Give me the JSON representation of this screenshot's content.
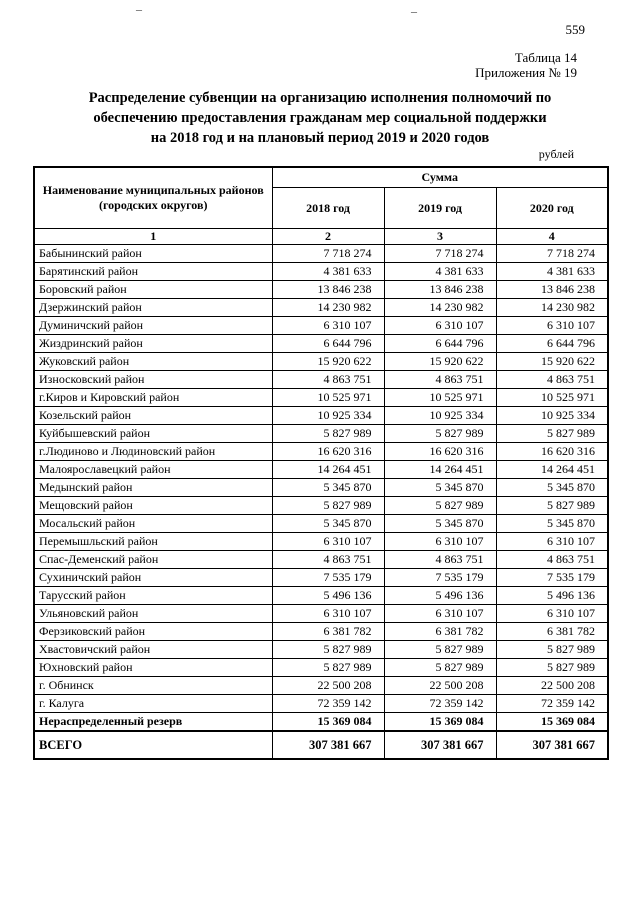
{
  "page": {
    "number": "559",
    "table_label": "Таблица 14",
    "appendix_label": "Приложения № 19",
    "title_lines": [
      "Распределение субвенции на организацию исполнения полномочий по",
      "обеспечению предоставления гражданам мер социальной поддержки",
      "на 2018 год и на плановый период 2019 и 2020 годов"
    ],
    "units": "рублей",
    "marks": [
      "–",
      "–"
    ]
  },
  "table": {
    "header": {
      "name_col": "Наименование муниципальных районов (городских округов)",
      "sum_group": "Сумма",
      "year_cols": [
        "2018 год",
        "2019 год",
        "2020 год"
      ],
      "col_numbers": [
        "1",
        "2",
        "3",
        "4"
      ]
    },
    "rows": [
      {
        "name": "Бабынинский район",
        "v2018": "7 718 274",
        "v2019": "7 718 274",
        "v2020": "7 718 274"
      },
      {
        "name": "Барятинский район",
        "v2018": "4 381 633",
        "v2019": "4 381 633",
        "v2020": "4 381 633"
      },
      {
        "name": "Боровский район",
        "v2018": "13 846 238",
        "v2019": "13 846 238",
        "v2020": "13 846 238"
      },
      {
        "name": "Дзержинский район",
        "v2018": "14 230 982",
        "v2019": "14 230 982",
        "v2020": "14 230 982"
      },
      {
        "name": "Думиничский район",
        "v2018": "6 310 107",
        "v2019": "6 310 107",
        "v2020": "6 310 107"
      },
      {
        "name": "Жиздринский район",
        "v2018": "6 644 796",
        "v2019": "6 644 796",
        "v2020": "6 644 796"
      },
      {
        "name": "Жуковский район",
        "v2018": "15 920 622",
        "v2019": "15 920 622",
        "v2020": "15 920 622"
      },
      {
        "name": "Износковский район",
        "v2018": "4 863 751",
        "v2019": "4 863 751",
        "v2020": "4 863 751"
      },
      {
        "name": "г.Киров и Кировский район",
        "v2018": "10 525 971",
        "v2019": "10 525 971",
        "v2020": "10 525 971"
      },
      {
        "name": "Козельский район",
        "v2018": "10 925 334",
        "v2019": "10 925 334",
        "v2020": "10 925 334"
      },
      {
        "name": "Куйбышевский район",
        "v2018": "5 827 989",
        "v2019": "5 827 989",
        "v2020": "5 827 989"
      },
      {
        "name": "г.Людиново и Людиновский район",
        "v2018": "16 620 316",
        "v2019": "16 620 316",
        "v2020": "16 620 316"
      },
      {
        "name": "Малоярославецкий район",
        "v2018": "14 264 451",
        "v2019": "14 264 451",
        "v2020": "14 264 451"
      },
      {
        "name": "Медынский район",
        "v2018": "5 345 870",
        "v2019": "5 345 870",
        "v2020": "5 345 870"
      },
      {
        "name": "Мещовский район",
        "v2018": "5 827 989",
        "v2019": "5 827 989",
        "v2020": "5 827 989"
      },
      {
        "name": "Мосальский район",
        "v2018": "5 345 870",
        "v2019": "5 345 870",
        "v2020": "5 345 870"
      },
      {
        "name": "Перемышльский район",
        "v2018": "6 310 107",
        "v2019": "6 310 107",
        "v2020": "6 310 107"
      },
      {
        "name": "Спас-Деменский район",
        "v2018": "4 863 751",
        "v2019": "4 863 751",
        "v2020": "4 863 751"
      },
      {
        "name": "Сухиничский район",
        "v2018": "7 535 179",
        "v2019": "7 535 179",
        "v2020": "7 535 179"
      },
      {
        "name": "Тарусский район",
        "v2018": "5 496 136",
        "v2019": "5 496 136",
        "v2020": "5 496 136"
      },
      {
        "name": "Ульяновский район",
        "v2018": "6 310 107",
        "v2019": "6 310 107",
        "v2020": "6 310 107"
      },
      {
        "name": "Ферзиковский район",
        "v2018": "6 381 782",
        "v2019": "6 381 782",
        "v2020": "6 381 782"
      },
      {
        "name": "Хвастовичский район",
        "v2018": "5 827 989",
        "v2019": "5 827 989",
        "v2020": "5 827 989"
      },
      {
        "name": "Юхновский район",
        "v2018": "5 827 989",
        "v2019": "5 827 989",
        "v2020": "5 827 989"
      },
      {
        "name": "г. Обнинск",
        "v2018": "22 500 208",
        "v2019": "22 500 208",
        "v2020": "22 500 208"
      },
      {
        "name": "г. Калуга",
        "v2018": "72 359 142",
        "v2019": "72 359 142",
        "v2020": "72 359 142"
      },
      {
        "name": "Нераспределенный резерв",
        "v2018": "15 369 084",
        "v2019": "15 369 084",
        "v2020": "15 369 084",
        "bold": true
      },
      {
        "name": "ВСЕГО",
        "v2018": "307 381 667",
        "v2019": "307 381 667",
        "v2020": "307 381 667",
        "bold": true,
        "total": true
      }
    ]
  }
}
